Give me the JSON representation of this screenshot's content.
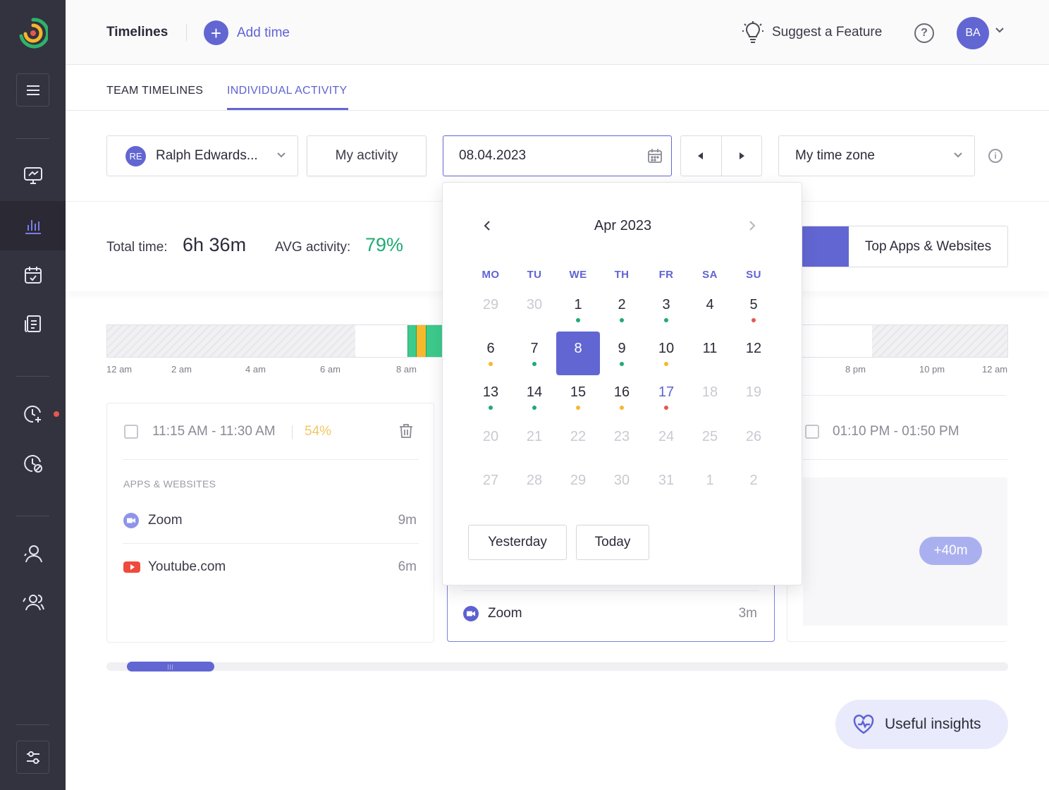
{
  "header": {
    "title": "Timelines",
    "add_time_label": "Add time",
    "suggest_label": "Suggest a Feature",
    "help_glyph": "?",
    "avatar_initials": "BA"
  },
  "tabs": {
    "team": "TEAM TIMELINES",
    "individual": "INDIVIDUAL ACTIVITY",
    "active": "individual"
  },
  "filters": {
    "user_initials": "RE",
    "user_name": "Ralph Edwards...",
    "activity_label": "My activity",
    "date_value": "08.04.2023",
    "timezone_label": "My time zone",
    "info_glyph": "i"
  },
  "summary": {
    "total_label": "Total time:",
    "total_value": "6h 36m",
    "avg_label": "AVG activity:",
    "avg_value": "79%",
    "top_apps_label": "Top Apps & Websites"
  },
  "timeline": {
    "ticks_left": [
      "12 am",
      "2 am",
      "4 am",
      "6 am",
      "8 am"
    ],
    "ticks_right": [
      "8 pm",
      "10 pm",
      "12 am"
    ]
  },
  "card1": {
    "time_range": "11:15 AM - 11:30 AM",
    "activity": "54%",
    "apps_header": "APPS & WEBSITES",
    "apps": [
      {
        "name": "Zoom",
        "duration": "9m",
        "icon": "zoom-icon"
      },
      {
        "name": "Youtube.com",
        "duration": "6m",
        "icon": "youtube-icon"
      }
    ]
  },
  "card2": {
    "apps": [
      {
        "name": "Zoom",
        "duration": "3m",
        "icon": "zoom-icon"
      }
    ]
  },
  "card3": {
    "time_range": "01:10 PM - 01:50 PM",
    "more_badge": "+40m"
  },
  "insights_label": "Useful insights",
  "datepicker": {
    "month_label": "Apr 2023",
    "weekdays": [
      "MO",
      "TU",
      "WE",
      "TH",
      "FR",
      "SA",
      "SU"
    ],
    "weeks": [
      [
        {
          "d": "29",
          "muted": true
        },
        {
          "d": "30",
          "muted": true
        },
        {
          "d": "1",
          "dot": "green"
        },
        {
          "d": "2",
          "dot": "green"
        },
        {
          "d": "3",
          "dot": "green"
        },
        {
          "d": "4"
        },
        {
          "d": "5",
          "dot": "red"
        }
      ],
      [
        {
          "d": "6",
          "dot": "yellow"
        },
        {
          "d": "7",
          "dot": "green"
        },
        {
          "d": "8",
          "selected": true
        },
        {
          "d": "9",
          "dot": "green"
        },
        {
          "d": "10",
          "dot": "yellow"
        },
        {
          "d": "11"
        },
        {
          "d": "12"
        }
      ],
      [
        {
          "d": "13",
          "dot": "green"
        },
        {
          "d": "14",
          "dot": "green"
        },
        {
          "d": "15",
          "dot": "yellow"
        },
        {
          "d": "16",
          "dot": "yellow"
        },
        {
          "d": "17",
          "today": true,
          "dot": "red"
        },
        {
          "d": "18",
          "muted": true
        },
        {
          "d": "19",
          "muted": true
        }
      ],
      [
        {
          "d": "20",
          "muted": true
        },
        {
          "d": "21",
          "muted": true
        },
        {
          "d": "22",
          "muted": true
        },
        {
          "d": "23",
          "muted": true
        },
        {
          "d": "24",
          "muted": true
        },
        {
          "d": "25",
          "muted": true
        },
        {
          "d": "26",
          "muted": true
        }
      ],
      [
        {
          "d": "27",
          "muted": true
        },
        {
          "d": "28",
          "muted": true
        },
        {
          "d": "29",
          "muted": true
        },
        {
          "d": "30",
          "muted": true
        },
        {
          "d": "31",
          "muted": true
        },
        {
          "d": "1",
          "muted": true
        },
        {
          "d": "2",
          "muted": true
        }
      ]
    ],
    "yesterday_label": "Yesterday",
    "today_label": "Today"
  },
  "colors": {
    "accent": "#6266d2",
    "green": "#1fab73",
    "yellow": "#f6b92b",
    "red": "#e5584f",
    "sidebar": "#33323f"
  }
}
